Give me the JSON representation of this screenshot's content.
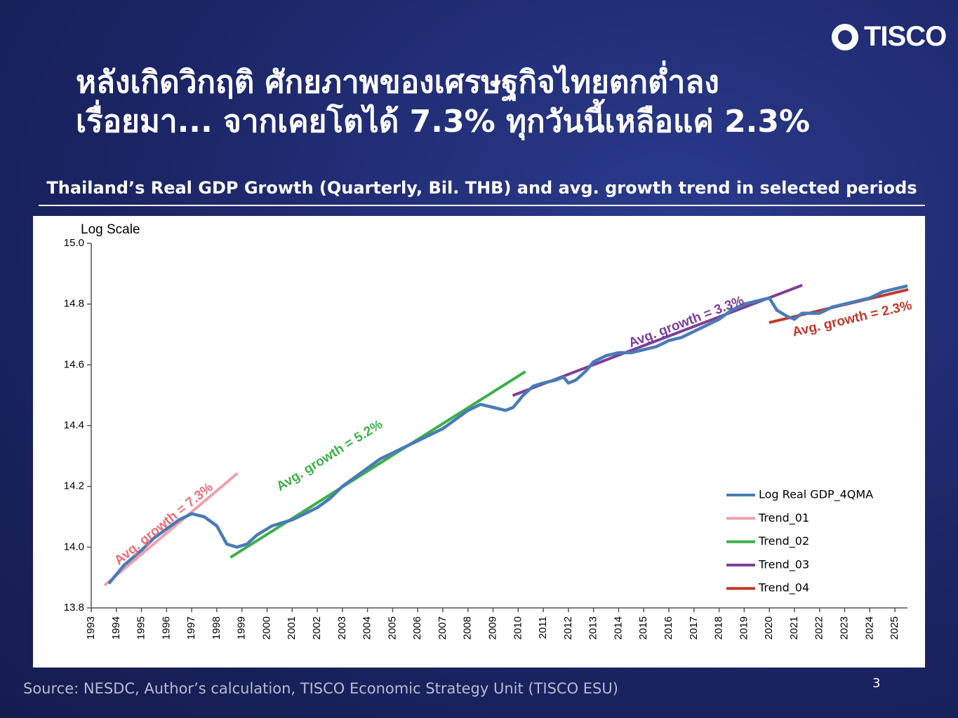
{
  "header": {
    "logo": "TISCO",
    "title": [
      "หลังเกิดวิกฤติ ศักยภาพของเศรษฐกิจไทยตกต่ำลง",
      "เรื่อยมา... จากเคยโตได้ 7.3% ทุกวันนี้เหลือแค่ 2.3%"
    ]
  },
  "chart_data": {
    "type": "line",
    "title": "Thailand’s Real GDP Growth (Quarterly, Bil. THB) and avg. growth trend in selected periods",
    "ylabel": "Log Scale",
    "xlim": [
      1993,
      2025.5
    ],
    "xticks": [
      1993,
      1994,
      1995,
      1996,
      1997,
      1998,
      1999,
      2000,
      2001,
      2002,
      2003,
      2004,
      2005,
      2006,
      2007,
      2008,
      2009,
      2010,
      2011,
      2012,
      2013,
      2014,
      2015,
      2016,
      2017,
      2018,
      2019,
      2020,
      2021,
      2022,
      2023,
      2024,
      2025
    ],
    "ylim": [
      13.8,
      15.0
    ],
    "yticks": [
      13.8,
      {
        "value": 14.0,
        "label": "14.0"
      },
      14.2,
      14.4,
      14.6,
      14.8,
      {
        "value": 15.0,
        "label": "15.0"
      }
    ],
    "legend": "center right",
    "series": [
      {
        "name": "Log Real GDP_4QMA",
        "color": "#4a7bb7",
        "x": [
          1993.7,
          1994.3,
          1995,
          1995.5,
          1996,
          1996.5,
          1997,
          1997.5,
          1998,
          1998.4,
          1998.8,
          1999.2,
          1999.6,
          2000.2,
          2001,
          2001.5,
          2002,
          2002.5,
          2003,
          2003.5,
          2004,
          2004.5,
          2005,
          2005.5,
          2006,
          2006.5,
          2007,
          2007.5,
          2008,
          2008.5,
          2009,
          2009.5,
          2009.8,
          2010.2,
          2010.6,
          2011,
          2011.5,
          2011.8,
          2012,
          2012.3,
          2012.7,
          2013,
          2013.5,
          2014,
          2014.5,
          2015,
          2015.5,
          2016,
          2016.5,
          2017,
          2017.5,
          2018,
          2018.5,
          2019,
          2019.5,
          2020,
          2020.3,
          2020.7,
          2021,
          2021.3,
          2022,
          2022.5,
          2023,
          2023.5,
          2024,
          2024.5,
          2025,
          2025.5
        ],
        "values": [
          13.88,
          13.94,
          13.99,
          14.03,
          14.06,
          14.09,
          14.11,
          14.1,
          14.07,
          14.01,
          14.0,
          14.01,
          14.04,
          14.07,
          14.09,
          14.11,
          14.13,
          14.16,
          14.2,
          14.23,
          14.26,
          14.29,
          14.31,
          14.33,
          14.35,
          14.37,
          14.39,
          14.42,
          14.45,
          14.47,
          14.46,
          14.45,
          14.46,
          14.5,
          14.53,
          14.54,
          14.55,
          14.56,
          14.54,
          14.55,
          14.58,
          14.61,
          14.63,
          14.64,
          14.64,
          14.65,
          14.66,
          14.68,
          14.69,
          14.71,
          14.73,
          14.75,
          14.78,
          14.8,
          14.81,
          14.82,
          14.78,
          14.76,
          14.75,
          14.77,
          14.77,
          14.79,
          14.8,
          14.81,
          14.82,
          14.84,
          14.85,
          14.86
        ]
      },
      {
        "name": "Trend_01",
        "color": "#f0a0a8",
        "x": [
          1993.53,
          1998.82
        ],
        "values": [
          13.874,
          14.243
        ]
      },
      {
        "name": "Trend_02",
        "color": "#3cb04a",
        "x": [
          1998.54,
          2010.29
        ],
        "values": [
          13.966,
          14.578
        ]
      },
      {
        "name": "Trend_03",
        "color": "#7b3f98",
        "x": [
          2009.78,
          2021.31
        ],
        "values": [
          14.499,
          14.862
        ]
      },
      {
        "name": "Trend_04",
        "color": "#c0392b",
        "x": [
          2019.99,
          2025.53
        ],
        "values": [
          14.739,
          14.848
        ]
      }
    ],
    "annotations": [
      "Avg. growth = 7.3%",
      "Avg. growth = 5.2%",
      "Avg. growth = 3.3%",
      "Avg. growth = 2.3%"
    ]
  },
  "footer": {
    "source": "Source: NESDC, Author’s calculation, TISCO Economic Strategy Unit (TISCO ESU)",
    "page": "3"
  }
}
